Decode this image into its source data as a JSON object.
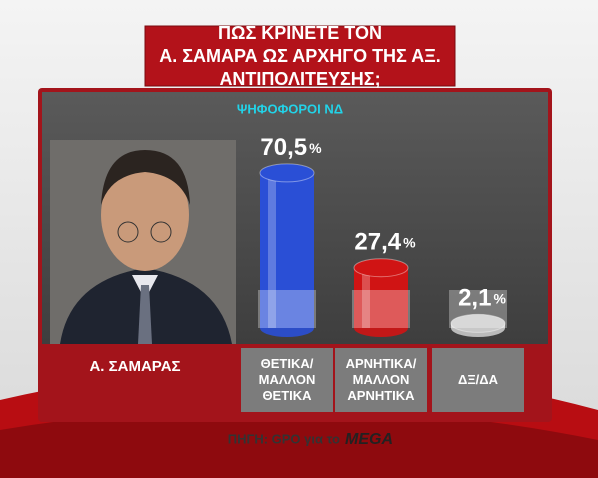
{
  "chart_data": {
    "type": "bar",
    "title": "ΠΩΣ ΚΡΙΝΕΤΕ ΤΟΝ\nΑ. ΣΑΜΑΡΑ ΩΣ ΑΡΧΗΓΟ ΤΗΣ ΑΞ. ΑΝΤΙΠΟΛΙΤΕΥΣΗΣ;",
    "subtitle": "ΨΗΦΟΦΟΡΟΙ ΝΔ",
    "person": "Α. ΣΑΜΑΡΑΣ",
    "categories": [
      "ΘΕΤΙΚΑ/\nΜΑΛΛΟΝ\nΘΕΤΙΚΑ",
      "ΑΡΝΗΤΙΚΑ/\nΜΑΛΛΟΝ\nΑΡΝΗΤΙΚΑ",
      "ΔΞ/ΔΑ"
    ],
    "values": [
      70.5,
      27.4,
      2.1
    ],
    "value_labels": [
      "70,5%",
      "27,4%",
      "2,1%"
    ],
    "colors": [
      "#2a4fd6",
      "#d01414",
      "#c8c8c8"
    ],
    "source": "ΠΗΓΗ: GPO για το",
    "logo": "MEGA"
  }
}
